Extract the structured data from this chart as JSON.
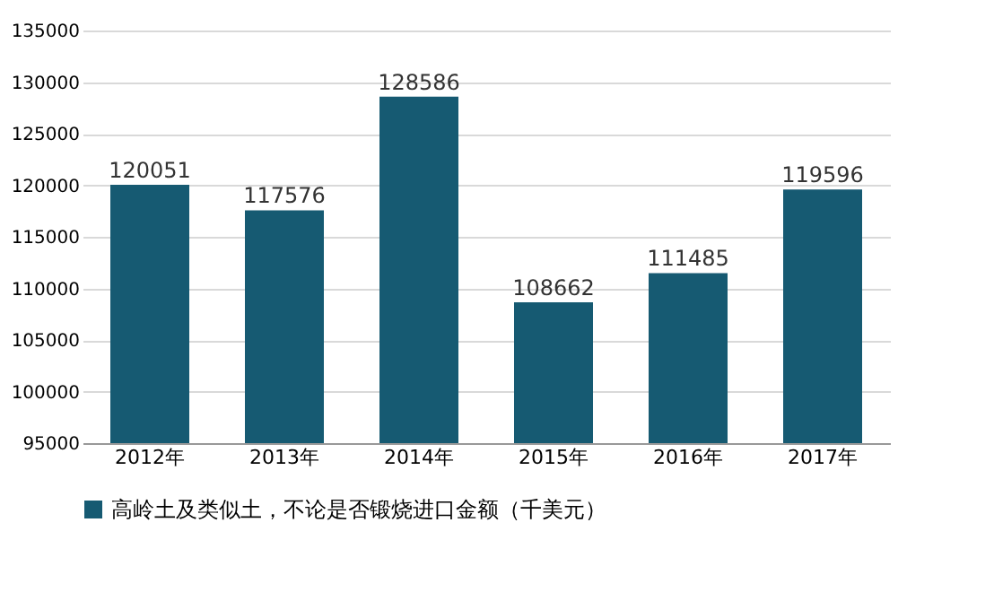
{
  "chart_data": {
    "type": "bar",
    "categories": [
      "2012年",
      "2013年",
      "2014年",
      "2015年",
      "2016年",
      "2017年"
    ],
    "series": [
      {
        "name": "高岭土及类似土，不论是否锻烧进口金额（千美元）",
        "color": "#165a72",
        "values": [
          120051,
          117576,
          128586,
          108662,
          111485,
          119596
        ]
      }
    ],
    "ylim": [
      95000,
      135000
    ],
    "yticks": [
      95000,
      100000,
      105000,
      110000,
      115000,
      120000,
      125000,
      130000,
      135000
    ],
    "grid": "y",
    "legend": "bottom",
    "data_labels": true
  }
}
